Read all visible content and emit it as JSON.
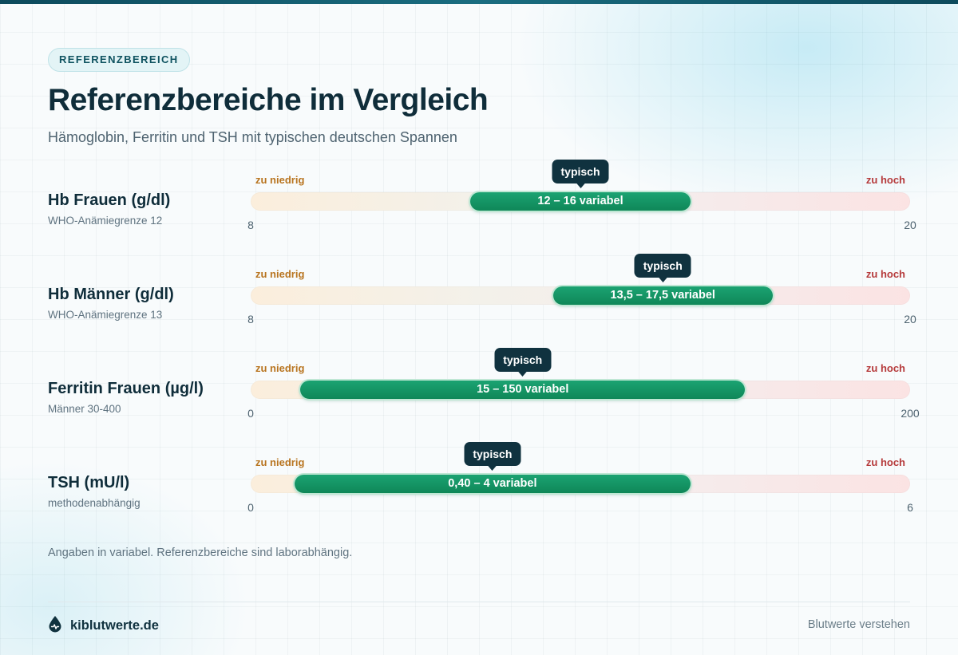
{
  "header": {
    "badge": "REFERENZBEREICH",
    "title": "Referenzbereiche im Vergleich",
    "subtitle": "Hämoglobin, Ferritin und TSH mit typischen deutschen Spannen"
  },
  "chart_data": {
    "type": "range",
    "markers": {
      "low_label": "zu niedrig",
      "high_label": "zu hoch",
      "typical_label": "typisch"
    },
    "rows": [
      {
        "label": "Hb Frauen (g/dl)",
        "sublabel": "WHO-Anämiegrenze 12",
        "axis_min": 8,
        "axis_max": 20,
        "axis_min_label": "8",
        "axis_max_label": "20",
        "range_low": 12,
        "range_high": 16,
        "range_label": "12 – 16 variabel"
      },
      {
        "label": "Hb Männer (g/dl)",
        "sublabel": "WHO-Anämiegrenze 13",
        "axis_min": 8,
        "axis_max": 20,
        "axis_min_label": "8",
        "axis_max_label": "20",
        "range_low": 13.5,
        "range_high": 17.5,
        "range_label": "13,5 – 17,5 variabel"
      },
      {
        "label": "Ferritin Frauen (µg/l)",
        "sublabel": "Männer 30-400",
        "axis_min": 0,
        "axis_max": 200,
        "axis_min_label": "0",
        "axis_max_label": "200",
        "range_low": 15,
        "range_high": 150,
        "range_label": "15 – 150 variabel"
      },
      {
        "label": "TSH (mU/l)",
        "sublabel": "methodenabhängig",
        "axis_min": 0,
        "axis_max": 6,
        "axis_min_label": "0",
        "axis_max_label": "6",
        "range_low": 0.4,
        "range_high": 4,
        "range_label": "0,40 – 4 variabel"
      }
    ],
    "colors": {
      "range": "#14975f",
      "tooltip": "#10323f",
      "low": "#b8741f",
      "high": "#b5393a"
    }
  },
  "footnote": "Angaben in variabel. Referenzbereiche sind laborabhängig.",
  "footer": {
    "brand": "kiblutwerte.de",
    "brand_icon": "blood-drop-icon",
    "tagline": "Blutwerte verstehen"
  }
}
